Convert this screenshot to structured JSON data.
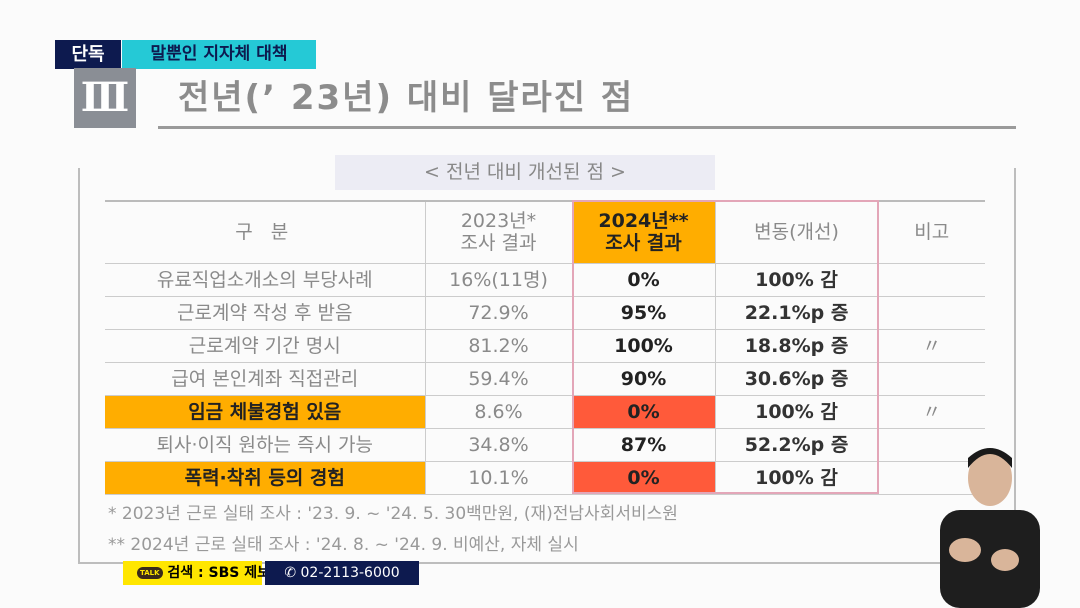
{
  "tags": {
    "exclusive": "단독",
    "topic": "말뿐인 지자체 대책"
  },
  "section": {
    "numeral": "Ⅲ",
    "title": "전년(’ 23년) 대비 달라진 점",
    "subtitle": "< 전년 대비 개선된 점 >"
  },
  "table": {
    "headers": [
      "구 분",
      "2023년* 조사 결과",
      "2024년** 조사 결과",
      "변동(개선)",
      "비고"
    ],
    "header_2023": [
      "2023년*",
      "조사 결과"
    ],
    "header_2024": [
      "2024년**",
      "조사 결과"
    ],
    "rows": [
      {
        "item": "유료직업소개소의 부당사례",
        "y2023": "16%(11명)",
        "y2024": "0%",
        "change": "100% 감",
        "note": ""
      },
      {
        "item": "근로계약 작성 후 받음",
        "y2023": "72.9%",
        "y2024": "95%",
        "change": "22.1%p 증",
        "note": ""
      },
      {
        "item": "근로계약 기간 명시",
        "y2023": "81.2%",
        "y2024": "100%",
        "change": "18.8%p 증",
        "note": "〃"
      },
      {
        "item": "급여 본인계좌 직접관리",
        "y2023": "59.4%",
        "y2024": "90%",
        "change": "30.6%p 증",
        "note": ""
      },
      {
        "item": "임금 체불경험 있음",
        "y2023": "8.6%",
        "y2024": "0%",
        "change": "100% 감",
        "note": "〃"
      },
      {
        "item": "퇴사·이직 원하는 즉시 가능",
        "y2023": "34.8%",
        "y2024": "87%",
        "change": "52.2%p 증",
        "note": ""
      },
      {
        "item": "폭력·착취 등의 경험",
        "y2023": "10.1%",
        "y2024": "0%",
        "change": "100% 감",
        "note": ""
      }
    ]
  },
  "footnotes": [
    "* 2023년 근로 실태 조사 : '23. 9. ~ '24. 5. 30백만원, (재)전남사회서비스원",
    "** 2024년 근로 실태 조사 : '24. 8. ~ '24. 9. 비예산, 자체 실시"
  ],
  "banner": {
    "kakao_icon": "TALK",
    "kakao_text": "검색 : SBS 제보",
    "phone": "02-2113-6000"
  }
}
